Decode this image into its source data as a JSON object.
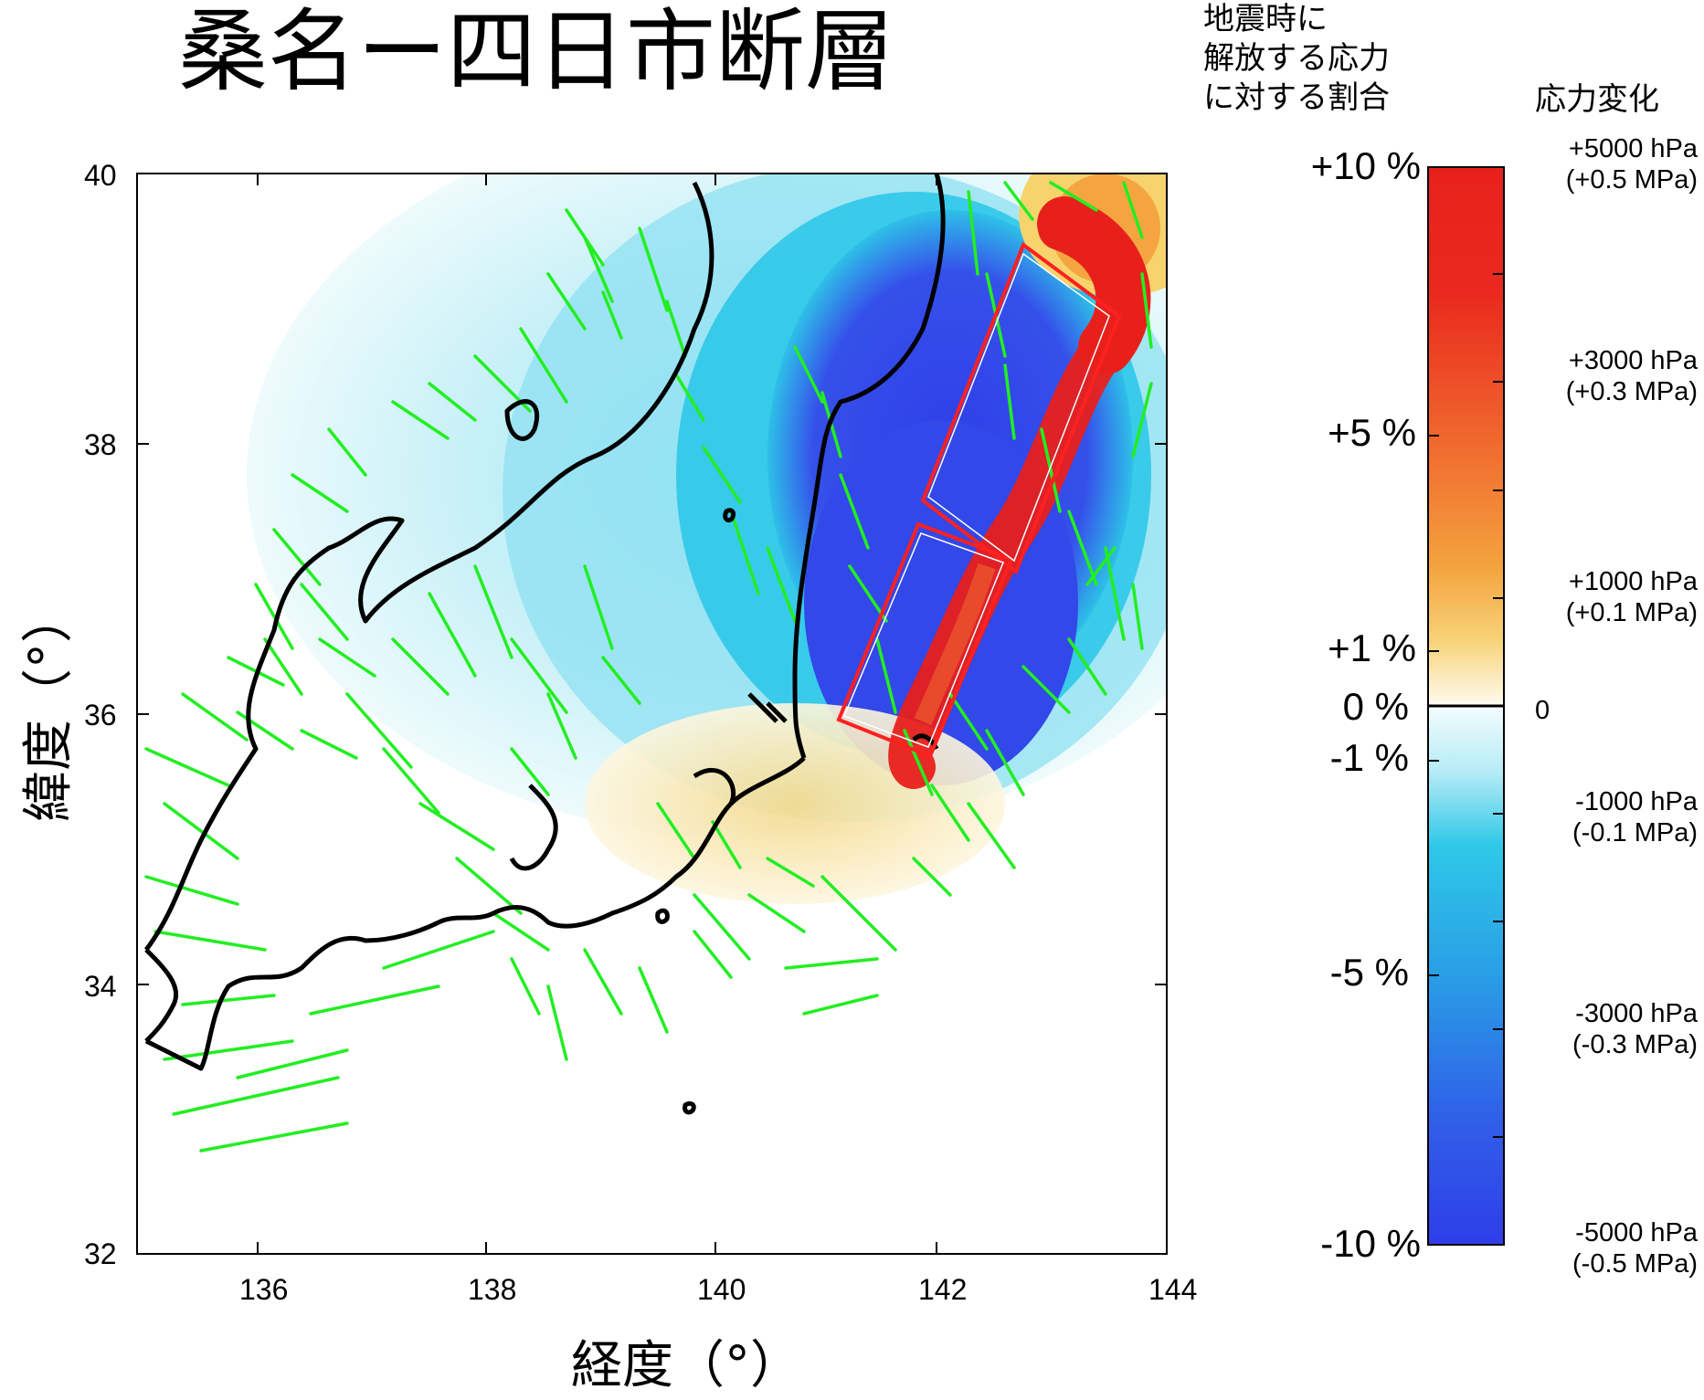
{
  "title": "桑名ー四日市断層",
  "x_axis": {
    "label": "経度（°）",
    "ticks": [
      "136",
      "138",
      "140",
      "142",
      "144"
    ],
    "range": [
      135,
      144
    ]
  },
  "y_axis": {
    "label": "緯度（°）",
    "ticks": [
      "32",
      "34",
      "36",
      "38",
      "40"
    ],
    "range": [
      32,
      40
    ]
  },
  "colorbar": {
    "left_title": [
      "地震時に",
      "解放する応力",
      "に対する割合"
    ],
    "right_title": "応力変化",
    "percent_labels": [
      "+10 %",
      "+5 %",
      "+1 %",
      "0 %",
      "-1 %",
      "-5 %",
      "-10 %"
    ],
    "hpa_labels": [
      [
        "+5000 hPa",
        "(+0.5 MPa)"
      ],
      [
        "+3000 hPa",
        "(+0.3 MPa)"
      ],
      [
        "+1000 hPa",
        "(+0.1 MPa)"
      ],
      [
        "0",
        ""
      ],
      [
        "-1000 hPa",
        "(-0.1 MPa)"
      ],
      [
        "-3000 hPa",
        "(-0.3 MPa)"
      ],
      [
        "-5000 hPa",
        "(-0.5 MPa)"
      ]
    ]
  },
  "colors": {
    "positive_max": "#e8201c",
    "positive_mid": "#f5a540",
    "positive_low": "#fbecb0",
    "zero": "#ffffff",
    "negative_low": "#c9f1f7",
    "negative_mid": "#29c6e8",
    "negative_max": "#2f3ee8",
    "faults": "#22ee22",
    "coast": "#000000",
    "fault_model": "#ff2020"
  },
  "fault_model_segments": [
    {
      "name": "north",
      "corners": [
        [
          141.85,
          37.6
        ],
        [
          142.75,
          39.3
        ],
        [
          143.55,
          38.95
        ],
        [
          142.65,
          37.25
        ]
      ]
    },
    {
      "name": "south",
      "corners": [
        [
          141.1,
          36.0
        ],
        [
          141.85,
          37.4
        ],
        [
          142.65,
          37.2
        ],
        [
          141.85,
          35.7
        ]
      ]
    }
  ]
}
